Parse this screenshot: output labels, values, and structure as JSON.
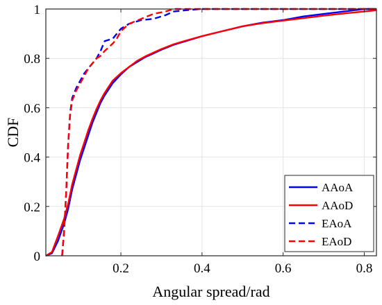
{
  "chart_data": {
    "type": "line",
    "xlabel": "Angular spread/rad",
    "ylabel": "CDF",
    "xlim": [
      0.015,
      0.83
    ],
    "ylim": [
      0,
      1
    ],
    "xticks": [
      0.2,
      0.4,
      0.6,
      0.8
    ],
    "xtick_labels": [
      "0.2",
      "0.4",
      "0.6",
      "0.8"
    ],
    "yticks": [
      0,
      0.2,
      0.4,
      0.6,
      0.8,
      1
    ],
    "ytick_labels": [
      "0",
      "0.2",
      "0.4",
      "0.6",
      "0.8",
      "1"
    ],
    "grid": true,
    "legend_position": "bottom-right",
    "series": [
      {
        "name": "AAoA",
        "color": "#0000ff",
        "dash": "solid",
        "x": [
          0.015,
          0.03,
          0.045,
          0.06,
          0.07,
          0.08,
          0.09,
          0.1,
          0.11,
          0.12,
          0.13,
          0.14,
          0.15,
          0.16,
          0.17,
          0.18,
          0.2,
          0.22,
          0.24,
          0.26,
          0.28,
          0.3,
          0.33,
          0.36,
          0.4,
          0.45,
          0.5,
          0.55,
          0.6,
          0.65,
          0.7,
          0.75,
          0.8,
          0.83
        ],
        "y": [
          0.0,
          0.01,
          0.06,
          0.13,
          0.19,
          0.27,
          0.33,
          0.39,
          0.44,
          0.49,
          0.54,
          0.58,
          0.62,
          0.65,
          0.675,
          0.7,
          0.735,
          0.765,
          0.785,
          0.805,
          0.82,
          0.835,
          0.855,
          0.87,
          0.89,
          0.91,
          0.93,
          0.945,
          0.955,
          0.97,
          0.98,
          0.99,
          1.0,
          1.0
        ]
      },
      {
        "name": "AAoD",
        "color": "#ff0000",
        "dash": "solid",
        "x": [
          0.015,
          0.03,
          0.045,
          0.06,
          0.07,
          0.08,
          0.09,
          0.1,
          0.11,
          0.12,
          0.13,
          0.14,
          0.15,
          0.16,
          0.17,
          0.18,
          0.2,
          0.22,
          0.24,
          0.26,
          0.28,
          0.3,
          0.33,
          0.36,
          0.4,
          0.45,
          0.5,
          0.55,
          0.6,
          0.65,
          0.7,
          0.75,
          0.8,
          0.83
        ],
        "y": [
          0.0,
          0.015,
          0.08,
          0.15,
          0.21,
          0.29,
          0.35,
          0.41,
          0.46,
          0.51,
          0.555,
          0.595,
          0.63,
          0.66,
          0.685,
          0.71,
          0.74,
          0.765,
          0.79,
          0.808,
          0.823,
          0.838,
          0.857,
          0.872,
          0.89,
          0.91,
          0.93,
          0.943,
          0.953,
          0.963,
          0.973,
          0.982,
          0.99,
          0.995
        ]
      },
      {
        "name": "EAoA",
        "color": "#0000ff",
        "dash": "dashed",
        "x": [
          0.055,
          0.06,
          0.065,
          0.07,
          0.075,
          0.08,
          0.09,
          0.1,
          0.11,
          0.12,
          0.13,
          0.14,
          0.15,
          0.16,
          0.18,
          0.2,
          0.22,
          0.25,
          0.28,
          0.31,
          0.33,
          0.36,
          0.4,
          0.5,
          0.6,
          0.7,
          0.83
        ],
        "y": [
          0.0,
          0.1,
          0.25,
          0.45,
          0.58,
          0.64,
          0.68,
          0.71,
          0.74,
          0.76,
          0.78,
          0.8,
          0.83,
          0.87,
          0.88,
          0.92,
          0.94,
          0.955,
          0.96,
          0.975,
          0.99,
          0.995,
          1.0,
          1.0,
          1.0,
          1.0,
          1.0
        ]
      },
      {
        "name": "EAoD",
        "color": "#ff0000",
        "dash": "dashed",
        "x": [
          0.055,
          0.06,
          0.065,
          0.07,
          0.075,
          0.08,
          0.09,
          0.1,
          0.11,
          0.12,
          0.13,
          0.14,
          0.15,
          0.16,
          0.18,
          0.19,
          0.2,
          0.22,
          0.25,
          0.28,
          0.31,
          0.33,
          0.36,
          0.4,
          0.5,
          0.6,
          0.7,
          0.83
        ],
        "y": [
          0.0,
          0.1,
          0.25,
          0.45,
          0.57,
          0.63,
          0.67,
          0.7,
          0.73,
          0.76,
          0.78,
          0.8,
          0.81,
          0.83,
          0.86,
          0.88,
          0.91,
          0.94,
          0.96,
          0.98,
          0.99,
          1.0,
          1.0,
          1.0,
          1.0,
          1.0,
          1.0,
          1.0
        ]
      }
    ]
  }
}
